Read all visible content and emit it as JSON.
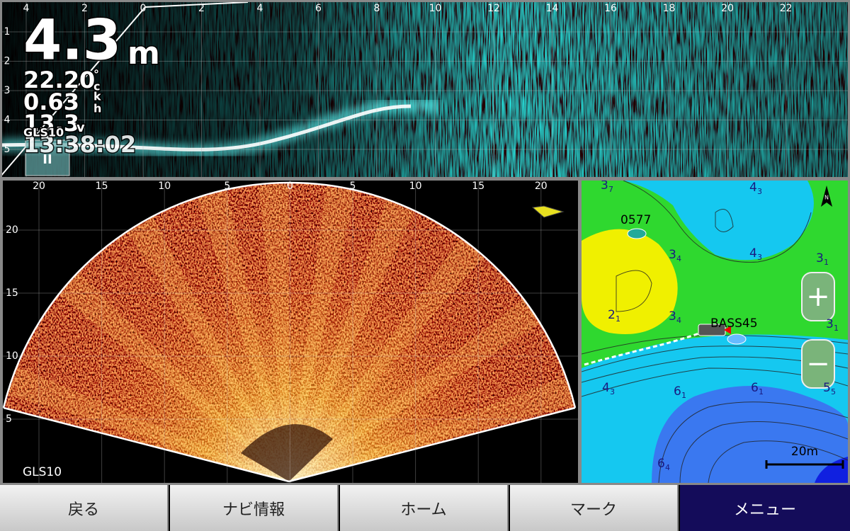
{
  "top_panel": {
    "x_ticks": [
      "4",
      "2",
      "0",
      "2",
      "4",
      "6",
      "8",
      "10",
      "12",
      "14",
      "16",
      "18",
      "20",
      "22"
    ],
    "y_ticks": [
      "1",
      "2",
      "3",
      "4",
      "5"
    ],
    "depth": "4.3",
    "depth_unit": "m",
    "water_temp": "22.20",
    "temp_unit_top": "°",
    "temp_unit_bottom": "c",
    "speed": "0.63",
    "speed_unit_top": "k",
    "speed_unit_bottom": "h",
    "voltage": "13.3",
    "voltage_unit": "v",
    "time": "13:38:02",
    "source": "GLS10",
    "pause_button": "II"
  },
  "sonar_panel": {
    "x_ticks": [
      "20",
      "15",
      "10",
      "5",
      "0",
      "5",
      "10",
      "15",
      "20"
    ],
    "y_ticks": [
      "20",
      "15",
      "10",
      "5"
    ],
    "source": "GLS10"
  },
  "map_panel": {
    "north": "N",
    "waypoints": [
      "0577",
      "BASS45"
    ],
    "contour_labels": [
      {
        "main": "3",
        "sub": "7"
      },
      {
        "main": "4",
        "sub": "3"
      },
      {
        "main": "3",
        "sub": "4"
      },
      {
        "main": "4",
        "sub": "3"
      },
      {
        "main": "3",
        "sub": "1"
      },
      {
        "main": "2",
        "sub": "1"
      },
      {
        "main": "3",
        "sub": "4"
      },
      {
        "main": "3",
        "sub": "1"
      },
      {
        "main": "4",
        "sub": "3"
      },
      {
        "main": "6",
        "sub": "1"
      },
      {
        "main": "6",
        "sub": "1"
      },
      {
        "main": "5",
        "sub": "5"
      },
      {
        "main": "6",
        "sub": "4"
      }
    ],
    "zoom_in": "+",
    "zoom_out": "−",
    "scale": "20m"
  },
  "nav_bar": {
    "buttons": [
      "戻る",
      "ナビ情報",
      "ホーム",
      "マーク",
      "メニュー"
    ]
  }
}
